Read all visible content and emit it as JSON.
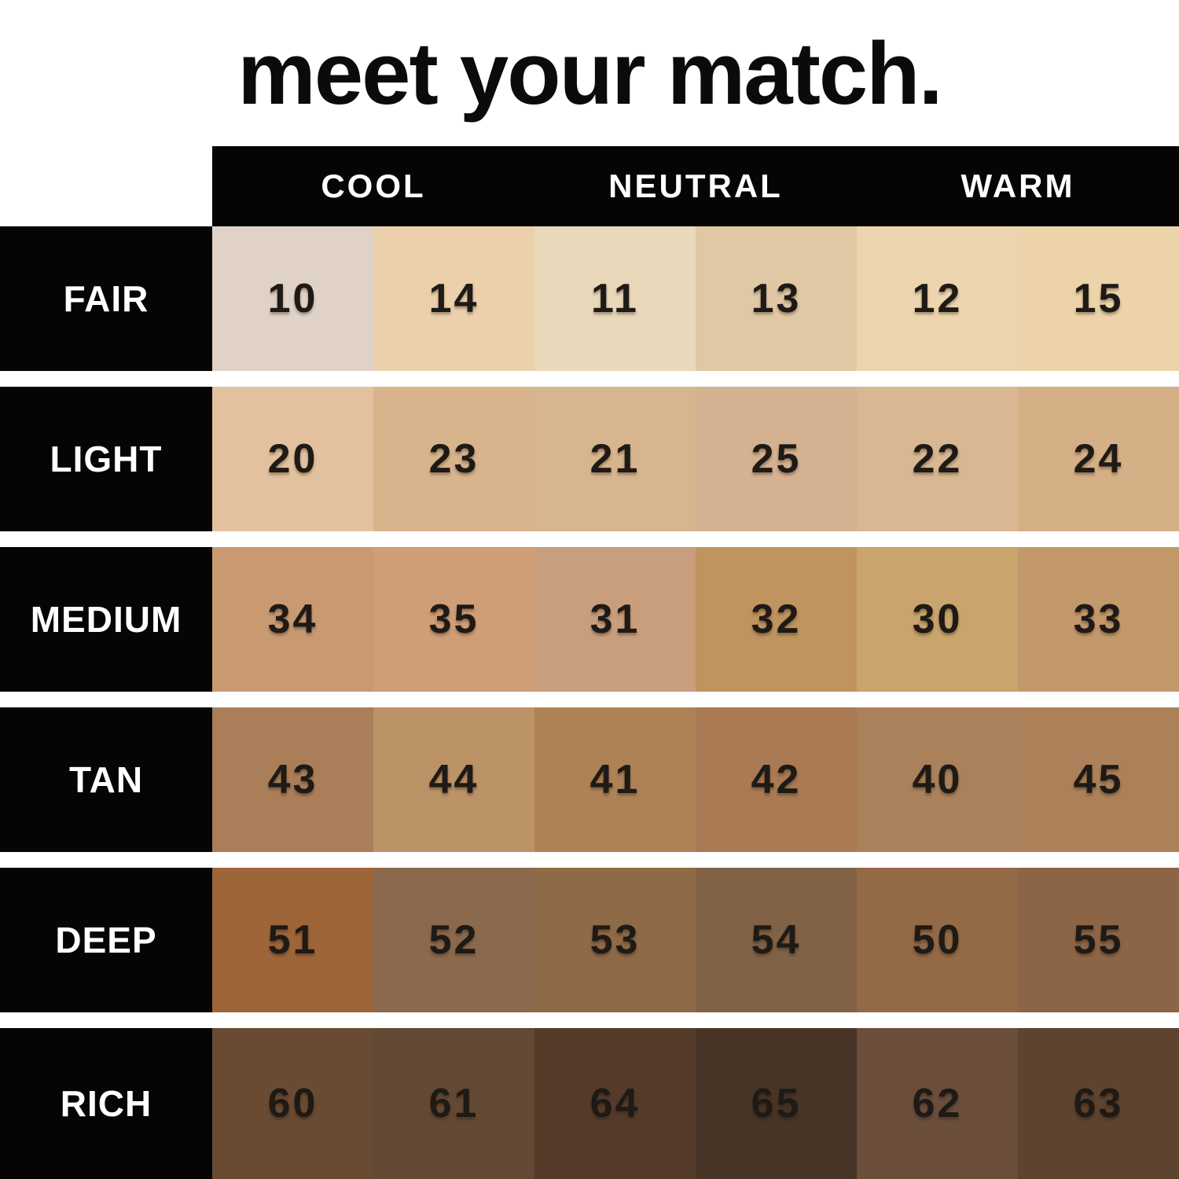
{
  "title": "meet your match.",
  "header": {
    "labels": [
      "COOL",
      "NEUTRAL",
      "WARM"
    ]
  },
  "palette": {
    "page_bg": "#ffffff",
    "bar_bg": "#050505",
    "bar_text": "#ffffff",
    "number_text": "#1e1a16"
  },
  "rows": [
    {
      "label": "FAIR",
      "swatches": [
        {
          "num": "10",
          "color": "#e0d2c6"
        },
        {
          "num": "14",
          "color": "#ecd0ab"
        },
        {
          "num": "11",
          "color": "#e9d8b9"
        },
        {
          "num": "13",
          "color": "#e0c8a5"
        },
        {
          "num": "12",
          "color": "#edd6af"
        },
        {
          "num": "15",
          "color": "#ecd3aa"
        }
      ]
    },
    {
      "label": "LIGHT",
      "swatches": [
        {
          "num": "20",
          "color": "#e3c19e"
        },
        {
          "num": "23",
          "color": "#d8b48c"
        },
        {
          "num": "21",
          "color": "#d7b58e"
        },
        {
          "num": "25",
          "color": "#d3b191"
        },
        {
          "num": "22",
          "color": "#d8b792"
        },
        {
          "num": "24",
          "color": "#d5af85"
        }
      ]
    },
    {
      "label": "MEDIUM",
      "swatches": [
        {
          "num": "34",
          "color": "#c99a72"
        },
        {
          "num": "35",
          "color": "#d09e76"
        },
        {
          "num": "31",
          "color": "#c89e7c"
        },
        {
          "num": "32",
          "color": "#bf945f"
        },
        {
          "num": "30",
          "color": "#c9a46c"
        },
        {
          "num": "33",
          "color": "#c3996b"
        }
      ]
    },
    {
      "label": "TAN",
      "swatches": [
        {
          "num": "43",
          "color": "#aa7e58"
        },
        {
          "num": "44",
          "color": "#bc9267"
        },
        {
          "num": "41",
          "color": "#ad8355"
        },
        {
          "num": "42",
          "color": "#a97a54"
        },
        {
          "num": "40",
          "color": "#aa815b"
        },
        {
          "num": "45",
          "color": "#ac8058"
        }
      ]
    },
    {
      "label": "DEEP",
      "swatches": [
        {
          "num": "51",
          "color": "#9e6539"
        },
        {
          "num": "52",
          "color": "#8a694c"
        },
        {
          "num": "53",
          "color": "#8e6a47"
        },
        {
          "num": "54",
          "color": "#816247"
        },
        {
          "num": "50",
          "color": "#936946"
        },
        {
          "num": "55",
          "color": "#8c6547"
        }
      ]
    },
    {
      "label": "RICH",
      "swatches": [
        {
          "num": "60",
          "color": "#694b33"
        },
        {
          "num": "61",
          "color": "#634933"
        },
        {
          "num": "64",
          "color": "#543b29"
        },
        {
          "num": "65",
          "color": "#483426"
        },
        {
          "num": "62",
          "color": "#6a4e3b"
        },
        {
          "num": "63",
          "color": "#5d4330"
        }
      ]
    }
  ],
  "chart_data": {
    "type": "table",
    "title": "meet your match.",
    "column_groups": [
      "COOL",
      "NEUTRAL",
      "WARM"
    ],
    "columns_per_group": 2,
    "row_labels": [
      "FAIR",
      "LIGHT",
      "MEDIUM",
      "TAN",
      "DEEP",
      "RICH"
    ],
    "shade_numbers": [
      [
        10,
        14,
        11,
        13,
        12,
        15
      ],
      [
        20,
        23,
        21,
        25,
        22,
        24
      ],
      [
        34,
        35,
        31,
        32,
        30,
        33
      ],
      [
        43,
        44,
        41,
        42,
        40,
        45
      ],
      [
        51,
        52,
        53,
        54,
        50,
        55
      ],
      [
        60,
        61,
        64,
        65,
        62,
        63
      ]
    ],
    "swatch_colors": [
      [
        "#e0d2c6",
        "#ecd0ab",
        "#e9d8b9",
        "#e0c8a5",
        "#edd6af",
        "#ecd3aa"
      ],
      [
        "#e3c19e",
        "#d8b48c",
        "#d7b58e",
        "#d3b191",
        "#d8b792",
        "#d5af85"
      ],
      [
        "#c99a72",
        "#d09e76",
        "#c89e7c",
        "#bf945f",
        "#c9a46c",
        "#c3996b"
      ],
      [
        "#aa7e58",
        "#bc9267",
        "#ad8355",
        "#a97a54",
        "#aa815b",
        "#ac8058"
      ],
      [
        "#9e6539",
        "#8a694c",
        "#8e6a47",
        "#816247",
        "#936946",
        "#8c6547"
      ],
      [
        "#694b33",
        "#634933",
        "#543b29",
        "#483426",
        "#6a4e3b",
        "#5d4330"
      ]
    ],
    "legend_position": "none",
    "grid": false
  }
}
